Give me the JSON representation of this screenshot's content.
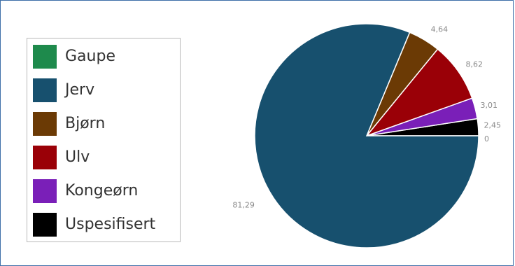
{
  "chart_data": {
    "type": "pie",
    "categories": [
      "Gaupe",
      "Jerv",
      "Bjørn",
      "Ulv",
      "Kongeørn",
      "Uspesifisert"
    ],
    "values": [
      0,
      81.29,
      4.64,
      8.62,
      3.01,
      2.45
    ],
    "value_labels": [
      "0",
      "81,29",
      "4,64",
      "8,62",
      "3,01",
      "2,45"
    ],
    "colors": [
      "#1e8a4c",
      "#17506e",
      "#6b3a05",
      "#9a0007",
      "#7a1fb8",
      "#000000"
    ],
    "legend_position": "left",
    "start_angle": "3 o'clock, counter-clockwise"
  }
}
